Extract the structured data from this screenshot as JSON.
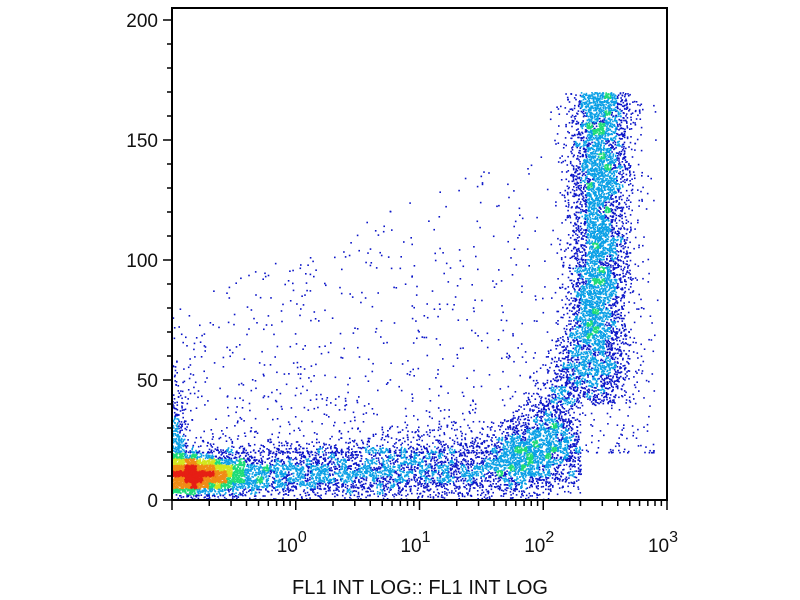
{
  "chart_data": {
    "type": "scatter",
    "subtype": "flow-cytometry-density-dot-plot",
    "xlabel": "FL1 INT LOG:: FL1 INT LOG",
    "ylabel": "",
    "x_scale": "log",
    "xlim": [
      0.1,
      1000
    ],
    "ylim": [
      0,
      205
    ],
    "x_ticks": [
      {
        "value": 1,
        "base": "10",
        "exp": "0"
      },
      {
        "value": 10,
        "base": "10",
        "exp": "1"
      },
      {
        "value": 100,
        "base": "10",
        "exp": "2"
      },
      {
        "value": 1000,
        "base": "10",
        "exp": "3"
      }
    ],
    "y_ticks": [
      {
        "value": 0,
        "label": "0"
      },
      {
        "value": 50,
        "label": "50"
      },
      {
        "value": 100,
        "label": "100"
      },
      {
        "value": 150,
        "label": "150"
      },
      {
        "value": 200,
        "label": "200"
      }
    ],
    "grid": false,
    "legend": "none",
    "density_colormap": [
      "#0a14c8",
      "#0aa0e6",
      "#1edc78",
      "#d2e61e",
      "#f08c14",
      "#e61e14"
    ],
    "populations": [
      {
        "x_log_center": -0.8,
        "x_log_spread": 0.18,
        "y_center": 11,
        "y_spread": 4
      },
      {
        "x_log_center": 0.6,
        "x_log_spread": 0.75,
        "y_center": 12,
        "y_spread": 5
      },
      {
        "x_log_center": 2.45,
        "x_log_spread": 0.12,
        "y_center": 95,
        "y_spread": 30
      },
      {
        "x_log_center": 1.5,
        "x_log_spread": 0.9,
        "y_center": 45,
        "y_spread": 40
      }
    ]
  }
}
